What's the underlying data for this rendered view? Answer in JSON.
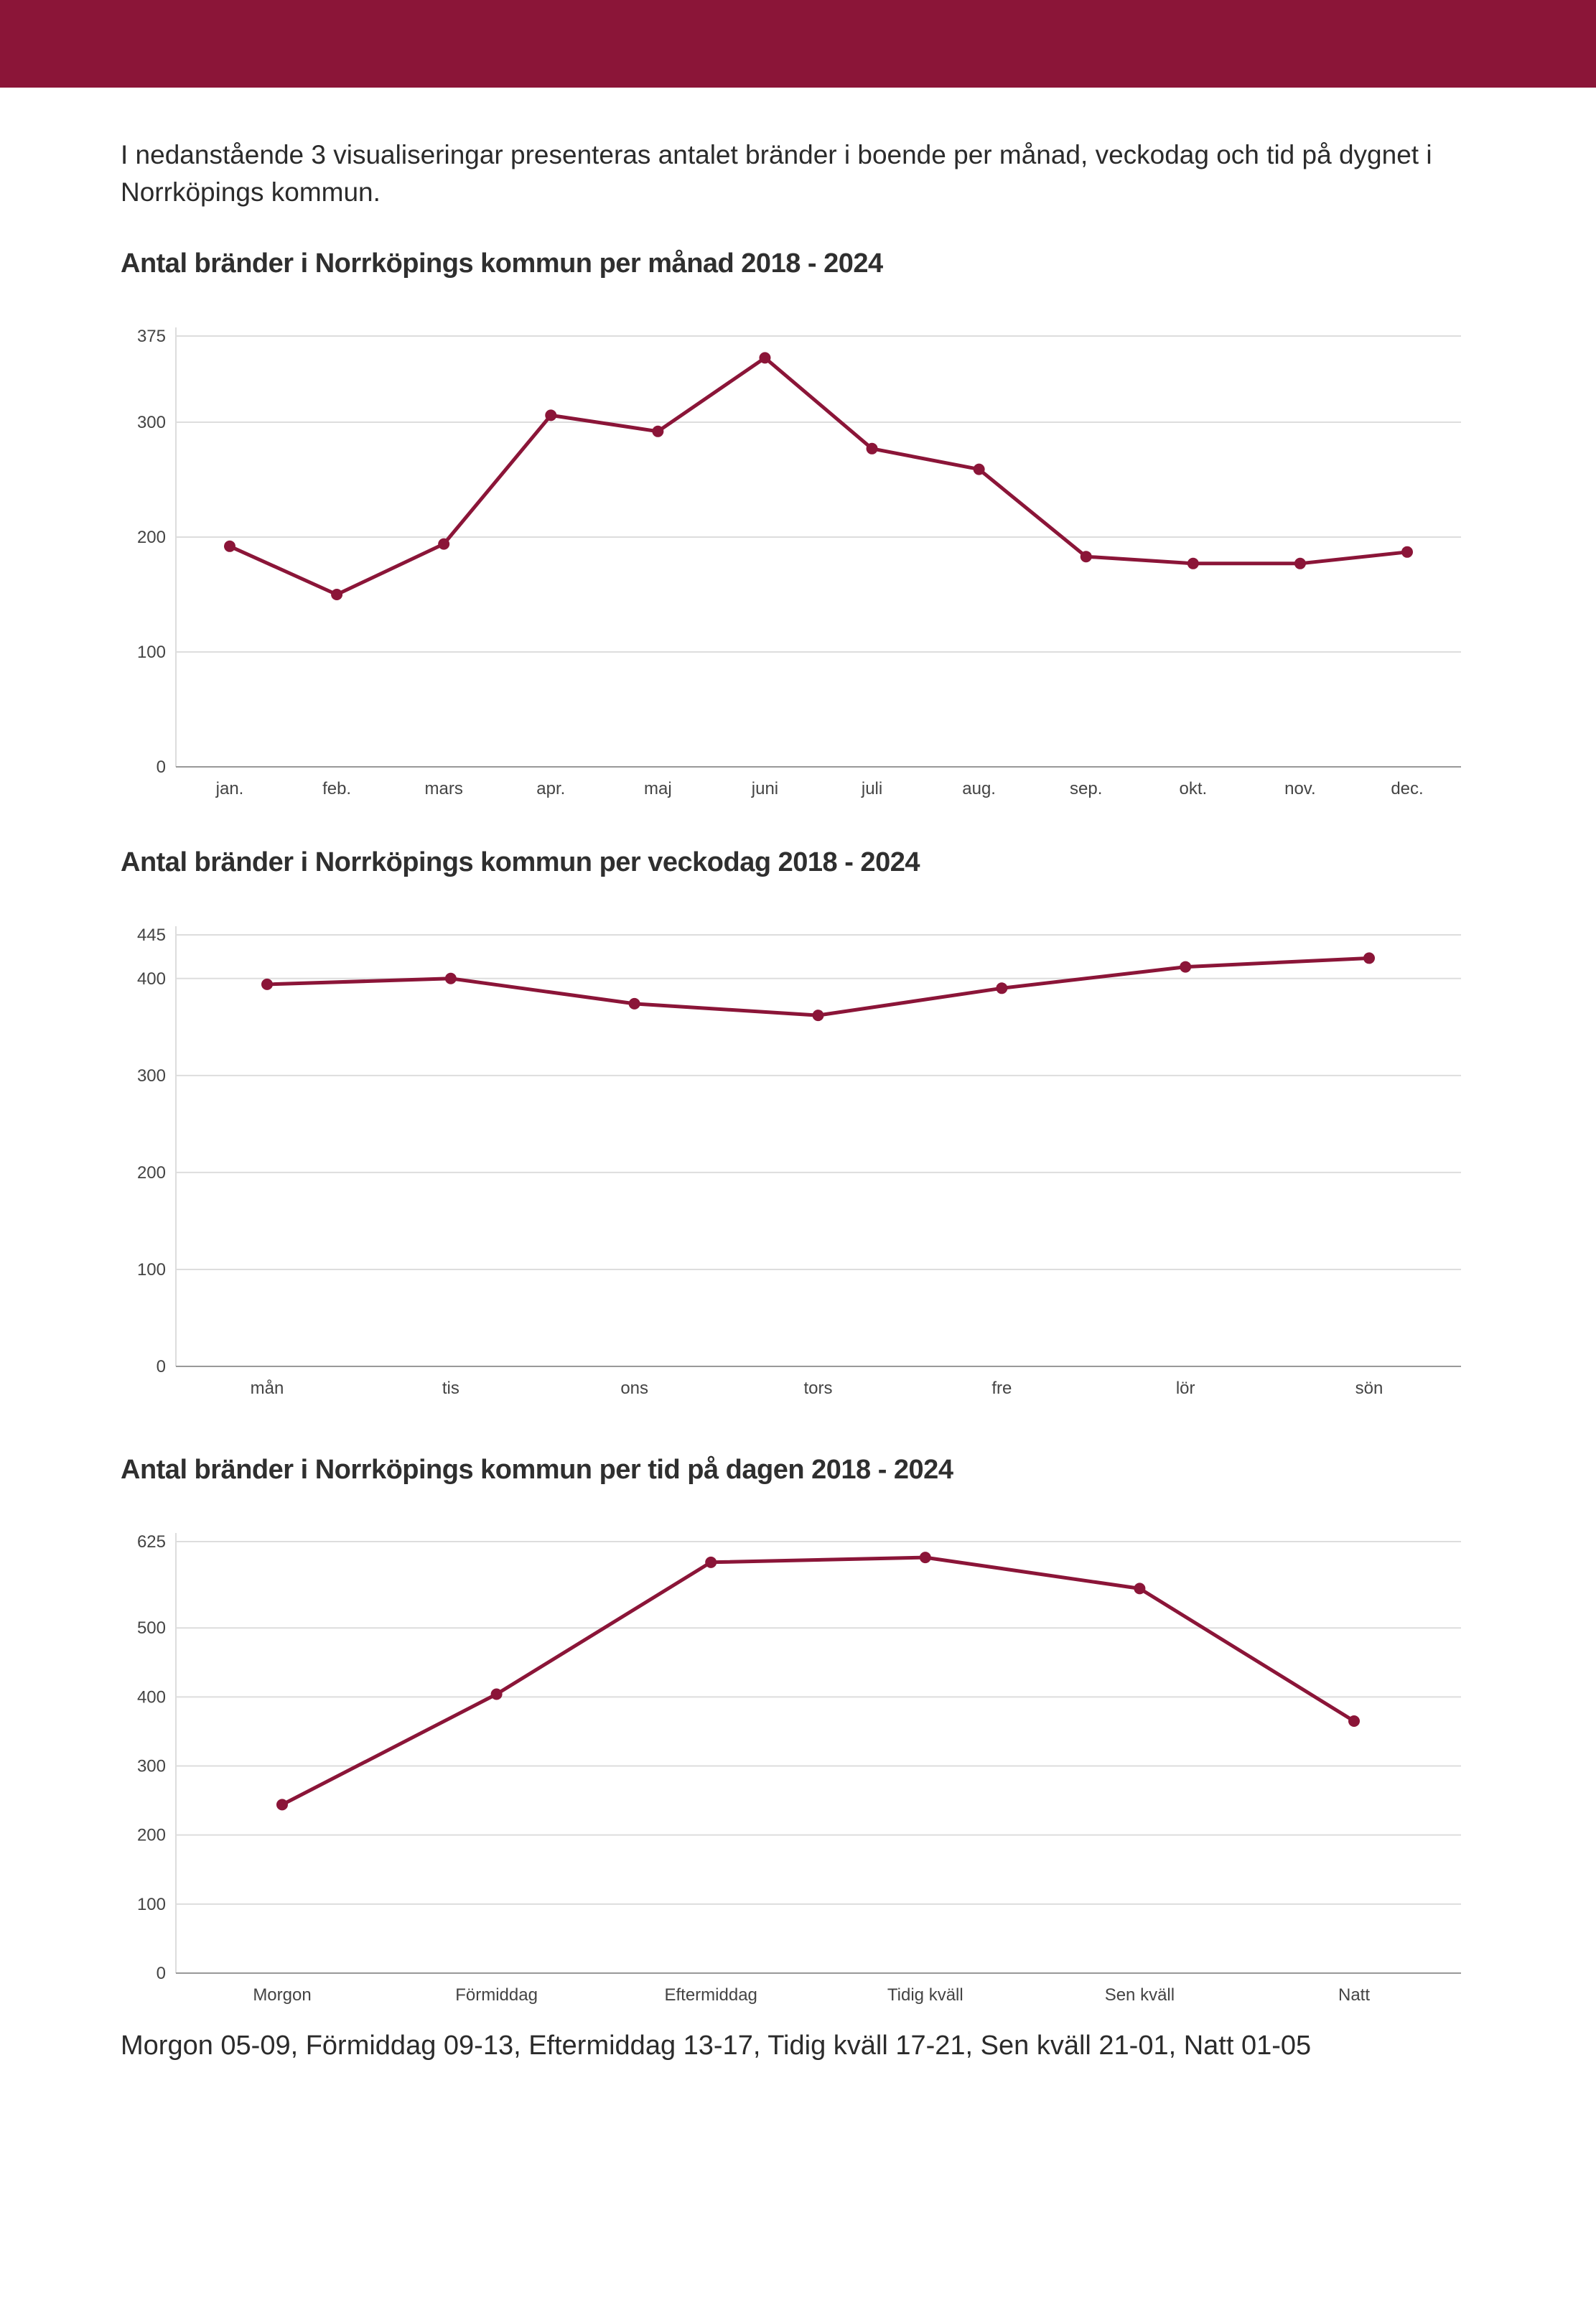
{
  "intro_text": "I nedanstående 3 visualiseringar presenteras antalet bränder i boende per månad, veckodag och tid på dygnet i Norrköpings kommun.",
  "footnote": "Morgon 05-09, Förmiddag 09-13, Eftermiddag 13-17, Tidig kväll 17-21, Sen kväll 21-01, Natt 01-05",
  "colors": {
    "header_band": "#8b1538",
    "line": "#8b1538",
    "grid": "#dddddd",
    "axis": "#999999"
  },
  "chart_data": [
    {
      "type": "line",
      "title": "Antal bränder i Norrköpings kommun per månad 2018 - 2024",
      "categories": [
        "jan.",
        "feb.",
        "mars",
        "apr.",
        "maj",
        "juni",
        "juli",
        "aug.",
        "sep.",
        "okt.",
        "nov.",
        "dec."
      ],
      "values": [
        192,
        150,
        194,
        306,
        292,
        356,
        277,
        259,
        183,
        177,
        177,
        187
      ],
      "yticks": [
        0,
        100,
        200,
        300,
        375
      ],
      "ylim": [
        0,
        375
      ],
      "xlabel": "",
      "ylabel": "",
      "grid": true
    },
    {
      "type": "line",
      "title": "Antal bränder i Norrköpings kommun per veckodag 2018 - 2024",
      "categories": [
        "mån",
        "tis",
        "ons",
        "tors",
        "fre",
        "lör",
        "sön"
      ],
      "values": [
        394,
        400,
        374,
        362,
        390,
        412,
        421
      ],
      "yticks": [
        0,
        100,
        200,
        300,
        400,
        445
      ],
      "ylim": [
        0,
        445
      ],
      "xlabel": "",
      "ylabel": "",
      "grid": true
    },
    {
      "type": "line",
      "title": "Antal bränder i Norrköpings kommun per tid på dagen 2018 - 2024",
      "categories": [
        "Morgon",
        "Förmiddag",
        "Eftermiddag",
        "Tidig kväll",
        "Sen kväll",
        "Natt"
      ],
      "values": [
        244,
        404,
        595,
        602,
        557,
        365
      ],
      "yticks": [
        0,
        100,
        200,
        300,
        400,
        500,
        625
      ],
      "ylim": [
        0,
        625
      ],
      "xlabel": "",
      "ylabel": "",
      "grid": true
    }
  ]
}
